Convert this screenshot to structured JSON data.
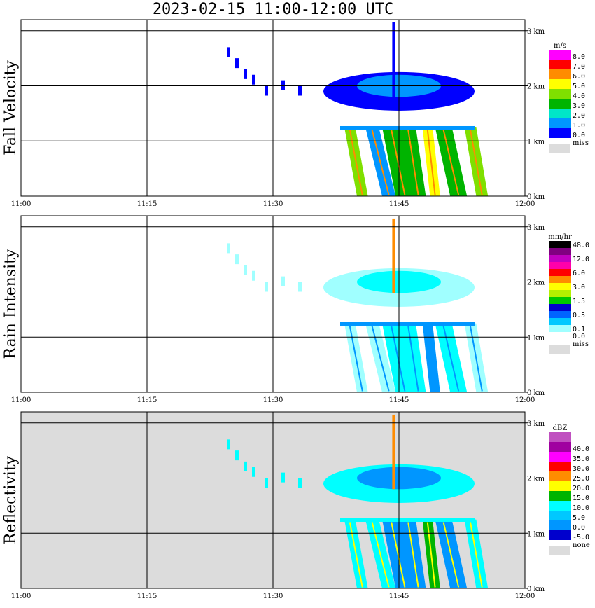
{
  "title": "2023-02-15  11:00-12:00 UTC",
  "chart_data": [
    {
      "type": "heatmap",
      "ylabel": "Fall Velocity",
      "legend_unit": "m/s",
      "x_ticks": [
        "11:00",
        "11:15",
        "11:30",
        "11:45",
        "12:00"
      ],
      "y_ticks": [
        "0 km",
        "1 km",
        "2 km",
        "3 km"
      ],
      "xlim": [
        0,
        60
      ],
      "ylim": [
        0,
        3.2
      ],
      "background": "#ffffff",
      "scale": [
        {
          "label": "8.0",
          "color": "#ff00ff"
        },
        {
          "label": "7.0",
          "color": "#ff0000"
        },
        {
          "label": "6.0",
          "color": "#ff8c00"
        },
        {
          "label": "5.0",
          "color": "#ffff00"
        },
        {
          "label": "4.0",
          "color": "#7fe000"
        },
        {
          "label": "3.0",
          "color": "#00b400"
        },
        {
          "label": "2.0",
          "color": "#00e6c8"
        },
        {
          "label": "1.0",
          "color": "#0096ff"
        },
        {
          "label": "0.0",
          "color": "#0000ff"
        }
      ],
      "miss_label": "miss"
    },
    {
      "type": "heatmap",
      "ylabel": "Rain Intensity",
      "legend_unit": "mm/hr",
      "x_ticks": [
        "11:00",
        "11:15",
        "11:30",
        "11:45",
        "12:00"
      ],
      "y_ticks": [
        "0 km",
        "1 km",
        "2 km",
        "3 km"
      ],
      "xlim": [
        0,
        60
      ],
      "ylim": [
        0,
        3.2
      ],
      "background": "#ffffff",
      "scale": [
        {
          "label": "48.0",
          "color": "#000000"
        },
        {
          "label": "",
          "color": "#800080"
        },
        {
          "label": "12.0",
          "color": "#c000c0"
        },
        {
          "label": "",
          "color": "#ff00aa"
        },
        {
          "label": "6.0",
          "color": "#ff0000"
        },
        {
          "label": "",
          "color": "#ff8c00"
        },
        {
          "label": "3.0",
          "color": "#ffff00"
        },
        {
          "label": "",
          "color": "#b4f000"
        },
        {
          "label": "1.5",
          "color": "#00c800"
        },
        {
          "label": "",
          "color": "#0000cd"
        },
        {
          "label": "0.5",
          "color": "#0064ff"
        },
        {
          "label": "",
          "color": "#00c8ff"
        },
        {
          "label": "0.1",
          "color": "#a0ffff"
        },
        {
          "label": "0.0",
          "color": "#ffffff"
        }
      ],
      "miss_label": "miss"
    },
    {
      "type": "heatmap",
      "ylabel": "Reflectivity",
      "legend_unit": "dBZ",
      "x_ticks": [
        "11:00",
        "11:15",
        "11:30",
        "11:45",
        "12:00"
      ],
      "y_ticks": [
        "0 km",
        "1 km",
        "2 km",
        "3 km"
      ],
      "xlim": [
        0,
        60
      ],
      "ylim": [
        0,
        3.2
      ],
      "background": "#dcdcdc",
      "scale": [
        {
          "label": "",
          "color": "#c050c0"
        },
        {
          "label": "40.0",
          "color": "#a000a0"
        },
        {
          "label": "35.0",
          "color": "#ff00ff"
        },
        {
          "label": "30.0",
          "color": "#ff0000"
        },
        {
          "label": "25.0",
          "color": "#ff8c00"
        },
        {
          "label": "20.0",
          "color": "#ffff00"
        },
        {
          "label": "15.0",
          "color": "#00b400"
        },
        {
          "label": "10.0",
          "color": "#00ffff"
        },
        {
          "label": "5.0",
          "color": "#00c8ff"
        },
        {
          "label": "0.0",
          "color": "#0096ff"
        },
        {
          "label": "-5.0",
          "color": "#0000cd"
        }
      ],
      "miss_label": "none"
    }
  ],
  "colors": {
    "miss": "#dcdcdc",
    "frame": "#000000",
    "dark_blue": "#0000ff",
    "mid_blue": "#0096ff",
    "cyan": "#00ffff",
    "light_cyan": "#a0ffff",
    "green": "#00b400",
    "lime": "#7fe000",
    "yellow": "#ffff00",
    "orange": "#ff8c00",
    "red": "#ff0000"
  }
}
